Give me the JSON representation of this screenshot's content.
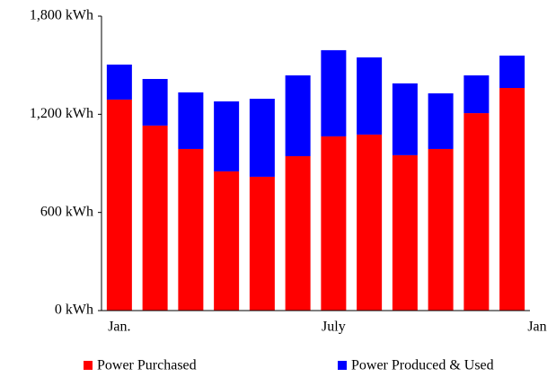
{
  "chart_data": {
    "type": "stacked_bar",
    "categories": [
      "Jan.",
      null,
      null,
      null,
      null,
      null,
      "July",
      null,
      null,
      null,
      null,
      null
    ],
    "x_end_label": "Jan",
    "series": [
      {
        "name": "Power Purchased",
        "color": "#ff0000",
        "values": [
          1290,
          1131,
          988,
          851,
          818,
          944,
          1065,
          1076,
          950,
          988,
          1207,
          1361
        ]
      },
      {
        "name": "Power Produced & Used",
        "color": "#0000ff",
        "values": [
          214,
          285,
          346,
          428,
          477,
          494,
          527,
          472,
          439,
          340,
          231,
          198
        ]
      }
    ],
    "ylim": [
      0,
      1800
    ],
    "yticks": [
      {
        "value": 0,
        "label": "0 kWh"
      },
      {
        "value": 600,
        "label": "600 kWh"
      },
      {
        "value": 1200,
        "label": "1,200 kWh"
      },
      {
        "value": 1800,
        "label": "1,800 kWh"
      }
    ],
    "legend": "bottom"
  }
}
